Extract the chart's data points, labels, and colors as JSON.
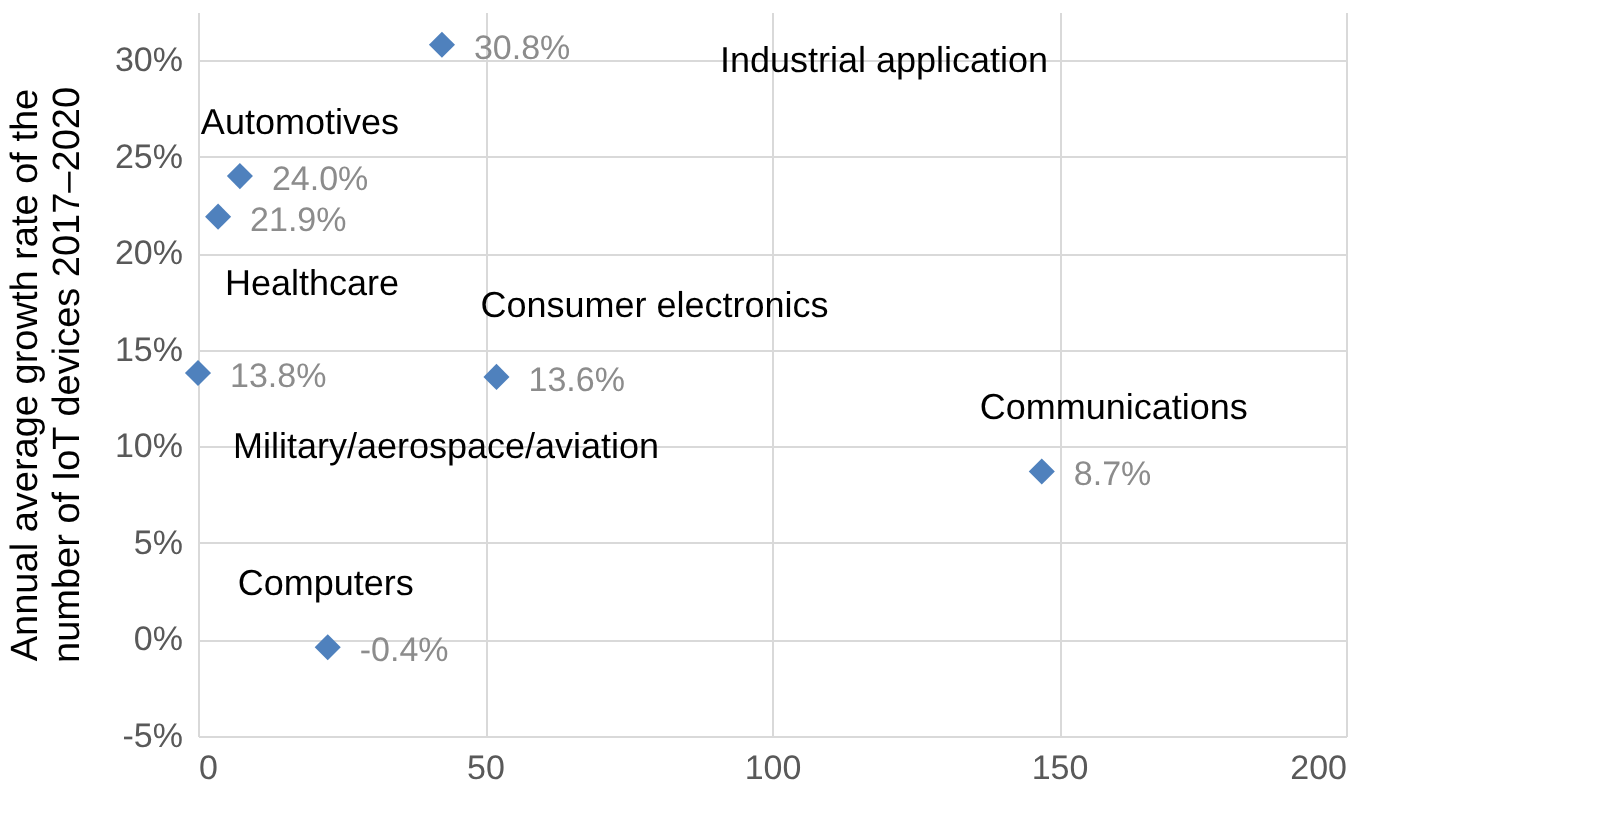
{
  "chart_data": {
    "type": "scatter",
    "ylabel": "Annual average growth rate of the\nnumber of IoT devices 2017–2020",
    "x": [
      42.5,
      7.3,
      3.5,
      0,
      52,
      147,
      22.6
    ],
    "values": [
      30.8,
      24.0,
      21.9,
      13.8,
      13.6,
      8.7,
      -0.4
    ],
    "value_labels": [
      "30.8%",
      "24.0%",
      "21.9%",
      "13.8%",
      "13.6%",
      "8.7%",
      "-0.4%"
    ],
    "color": "#4f81bd",
    "marker": "diamond",
    "grid": true,
    "xlim": [
      0,
      200
    ],
    "xticks": [
      0,
      50,
      100,
      150,
      200
    ],
    "ylim": [
      -5,
      32.5
    ],
    "yticks": [
      {
        "value": -5,
        "label": "-5%"
      },
      {
        "value": 0,
        "label": "0%"
      },
      {
        "value": 5,
        "label": "5%"
      },
      {
        "value": 10,
        "label": "10%"
      },
      {
        "value": 15,
        "label": "15%"
      },
      {
        "value": 20,
        "label": "20%"
      },
      {
        "value": 25,
        "label": "25%"
      },
      {
        "value": 30,
        "label": "30%"
      }
    ],
    "annotations": [
      "Industrial application",
      {
        "text": "Automotives",
        "x": 7.3,
        "y": 24.0
      },
      {
        "text": "Healthcare",
        "x": 0,
        "y": 13.8
      },
      {
        "text": "Consumer electronics",
        "x": 52,
        "y": 13.6
      },
      {
        "text": "Communications",
        "x": 147,
        "y": 8.7
      },
      "Military/aerospace/aviation",
      {
        "text": "Computers",
        "x": 22.6,
        "y": -0.4
      }
    ]
  }
}
